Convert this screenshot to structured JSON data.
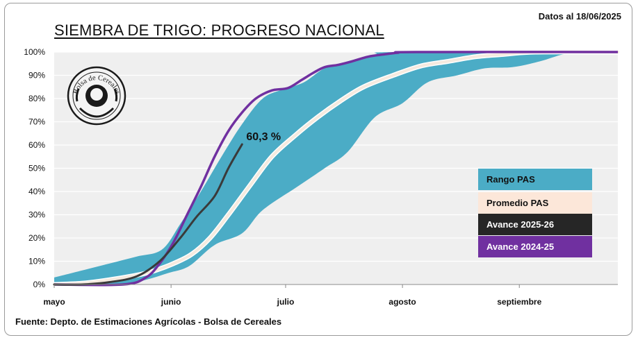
{
  "header": {
    "date_note": "Datos al 18/06/2025",
    "title": "SIEMBRA DE TRIGO: PROGRESO NACIONAL",
    "source": "Fuente: Depto. de Estimaciones Agrícolas - Bolsa de Cereales"
  },
  "logo": {
    "text": "Bolsa de Cereales"
  },
  "colors": {
    "range": "#4bacc6",
    "average": "#f5eadf",
    "current": "#3a3a3a",
    "previous": "#7030a0",
    "plot_bg": "#efefef"
  },
  "chart_data": {
    "type": "area",
    "x_unit": "days since 1 May",
    "xlim": [
      0,
      246
    ],
    "ylim": [
      0,
      100
    ],
    "y_ticks": [
      0,
      10,
      20,
      30,
      40,
      50,
      60,
      70,
      80,
      90,
      100
    ],
    "y_tick_labels": [
      "0%",
      "10%",
      "20%",
      "30%",
      "40%",
      "50%",
      "60%",
      "70%",
      "80%",
      "90%",
      "100%"
    ],
    "x_ticks": [
      {
        "x": 0,
        "label": "mayo"
      },
      {
        "x": 51,
        "label": "junio"
      },
      {
        "x": 101,
        "label": "julio"
      },
      {
        "x": 152,
        "label": "agosto"
      },
      {
        "x": 203,
        "label": "septiembre"
      }
    ],
    "grid": "horizontal",
    "annotation": {
      "label": "60,3 %",
      "x": 82,
      "y": 60.3
    },
    "series": [
      {
        "name": "Rango PAS",
        "kind": "band",
        "upper": [
          [
            0,
            3
          ],
          [
            12,
            6
          ],
          [
            24,
            9
          ],
          [
            36,
            12
          ],
          [
            47,
            15
          ],
          [
            55,
            26
          ],
          [
            64,
            40
          ],
          [
            73,
            55
          ],
          [
            82,
            69
          ],
          [
            91,
            80
          ],
          [
            100,
            84
          ],
          [
            109,
            87
          ],
          [
            118,
            93
          ],
          [
            128,
            96
          ],
          [
            140,
            99
          ],
          [
            150,
            100
          ],
          [
            246,
            100
          ]
        ],
        "lower": [
          [
            0,
            0
          ],
          [
            30,
            0
          ],
          [
            40,
            2
          ],
          [
            50,
            5
          ],
          [
            59,
            8
          ],
          [
            70,
            17
          ],
          [
            82,
            22
          ],
          [
            91,
            32
          ],
          [
            106,
            42
          ],
          [
            118,
            50
          ],
          [
            128,
            57
          ],
          [
            140,
            72
          ],
          [
            152,
            78
          ],
          [
            163,
            87
          ],
          [
            176,
            90
          ],
          [
            188,
            93
          ],
          [
            200,
            93.5
          ],
          [
            212,
            96
          ],
          [
            222,
            99
          ],
          [
            230,
            100
          ],
          [
            246,
            100
          ]
        ]
      },
      {
        "name": "Promedio PAS",
        "kind": "line",
        "points": [
          [
            0,
            0
          ],
          [
            12,
            0.5
          ],
          [
            24,
            2
          ],
          [
            36,
            4
          ],
          [
            44,
            6
          ],
          [
            52,
            9
          ],
          [
            60,
            13
          ],
          [
            68,
            20
          ],
          [
            76,
            30
          ],
          [
            85,
            42
          ],
          [
            95,
            55
          ],
          [
            105,
            64
          ],
          [
            115,
            72
          ],
          [
            125,
            79
          ],
          [
            135,
            85
          ],
          [
            148,
            90
          ],
          [
            160,
            94
          ],
          [
            172,
            96
          ],
          [
            184,
            98
          ],
          [
            196,
            99
          ],
          [
            210,
            100
          ],
          [
            246,
            100
          ]
        ]
      },
      {
        "name": "Avance 2025-26",
        "kind": "line",
        "points": [
          [
            0,
            0
          ],
          [
            12,
            0
          ],
          [
            24,
            1
          ],
          [
            36,
            3.5
          ],
          [
            46,
            10
          ],
          [
            55,
            20
          ],
          [
            62,
            29
          ],
          [
            70,
            38
          ],
          [
            76,
            50
          ],
          [
            82,
            60.3
          ]
        ]
      },
      {
        "name": "Avance 2024-25",
        "kind": "line",
        "points": [
          [
            0,
            0
          ],
          [
            30,
            0
          ],
          [
            40,
            3
          ],
          [
            46,
            9
          ],
          [
            52,
            18
          ],
          [
            58,
            30
          ],
          [
            64,
            42
          ],
          [
            70,
            55
          ],
          [
            76,
            66
          ],
          [
            82,
            74
          ],
          [
            88,
            80
          ],
          [
            95,
            83.5
          ],
          [
            102,
            84.5
          ],
          [
            108,
            88
          ],
          [
            113,
            91
          ],
          [
            118,
            93.5
          ],
          [
            124,
            94.5
          ],
          [
            130,
            96
          ],
          [
            137,
            98
          ],
          [
            144,
            99
          ],
          [
            150,
            99.7
          ],
          [
            158,
            100
          ],
          [
            246,
            100
          ]
        ]
      }
    ]
  }
}
